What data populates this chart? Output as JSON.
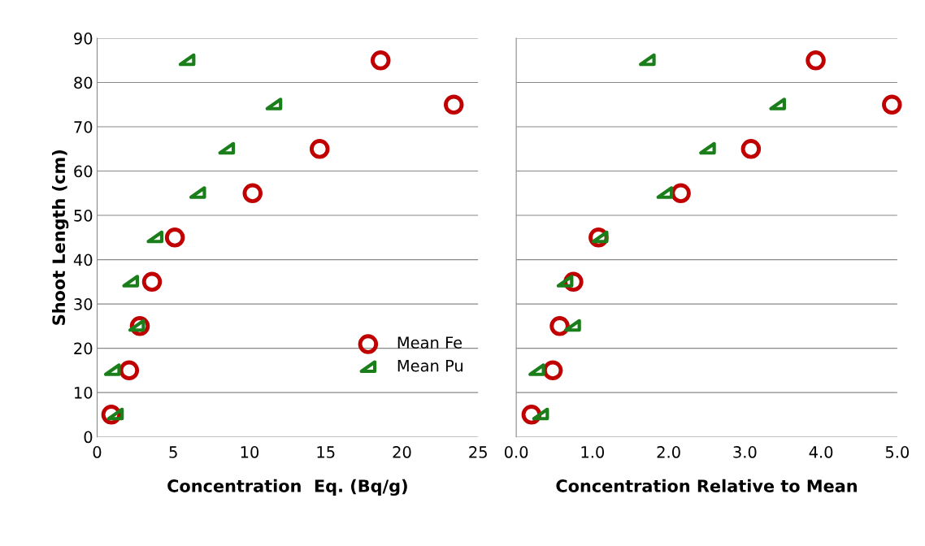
{
  "chart_data": [
    {
      "type": "scatter",
      "xlabel": "Concentration  Eq. (Bq/g)",
      "ylabel": "Shoot Length (cm)",
      "series": [
        {
          "name": "Mean Fe",
          "color": "#c00000",
          "marker": "circle",
          "x": [
            0.93,
            2.1,
            2.8,
            3.6,
            5.1,
            10.2,
            14.6,
            23.4,
            18.6
          ],
          "values": [
            5,
            15,
            25,
            35,
            45,
            55,
            65,
            75,
            85
          ]
        },
        {
          "name": "Mean Pu",
          "color": "#1a7f1a",
          "marker": "triangle",
          "x": [
            1.2,
            1.0,
            2.6,
            2.2,
            3.8,
            6.6,
            8.5,
            11.6,
            5.9
          ],
          "values": [
            5,
            15,
            25,
            35,
            45,
            55,
            65,
            75,
            85
          ]
        }
      ],
      "xlim": [
        0,
        25
      ],
      "xticks": [
        0,
        5,
        10,
        15,
        20,
        25
      ],
      "ylim": [
        0,
        90
      ],
      "yticks": [
        0,
        10,
        20,
        30,
        40,
        50,
        60,
        70,
        80,
        90
      ],
      "grid": "y",
      "legend": "bottom right"
    },
    {
      "type": "scatter",
      "xlabel": "Concentration Relative to Mean",
      "series": [
        {
          "color": "#c00000",
          "marker": "circle",
          "x": [
            0.2,
            0.48,
            0.57,
            0.75,
            1.08,
            2.16,
            3.08,
            4.93,
            3.93
          ],
          "values": [
            5,
            15,
            25,
            35,
            45,
            55,
            65,
            75,
            85
          ]
        },
        {
          "color": "#1a7f1a",
          "marker": "triangle",
          "x": [
            0.32,
            0.27,
            0.74,
            0.64,
            1.1,
            1.95,
            2.51,
            3.43,
            1.72
          ],
          "values": [
            5,
            15,
            25,
            35,
            45,
            55,
            65,
            75,
            85
          ]
        }
      ],
      "xlim": [
        0,
        5
      ],
      "xticks": [
        {
          "value": 0,
          "label": "0.0"
        },
        {
          "value": 1,
          "label": "1.0"
        },
        {
          "value": 2,
          "label": "2.0"
        },
        {
          "value": 3,
          "label": "3.0"
        },
        {
          "value": 4,
          "label": "4.0"
        },
        {
          "value": 5,
          "label": "5.0"
        }
      ],
      "ylim": [
        0,
        90
      ],
      "yticks": [
        0,
        10,
        20,
        30,
        40,
        50,
        60,
        70,
        80,
        90
      ],
      "grid": "y",
      "tick_labels": "x"
    }
  ]
}
